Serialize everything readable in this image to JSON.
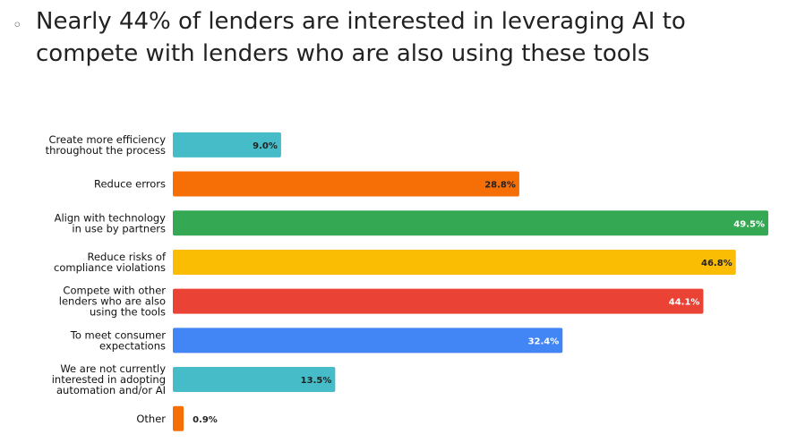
{
  "slide": {
    "bullet": "◦",
    "title": "Nearly 44% of lenders are interested in leveraging AI to compete with lenders who are also using these tools"
  },
  "chart_data": {
    "type": "bar",
    "orientation": "horizontal",
    "categories": [
      [
        "Create more efficiency",
        "throughout the process"
      ],
      [
        "Reduce errors"
      ],
      [
        "Align with technology",
        "in use by partners"
      ],
      [
        "Reduce risks of",
        "compliance violations"
      ],
      [
        "Compete with other",
        "lenders who are also",
        "using the tools"
      ],
      [
        "To meet consumer",
        "expectations"
      ],
      [
        "We are not currently",
        "interested in adopting",
        "automation and/or AI"
      ],
      [
        "Other"
      ]
    ],
    "values": [
      9.0,
      28.8,
      49.5,
      46.8,
      44.1,
      32.4,
      13.5,
      0.9
    ],
    "value_labels": [
      "9.0%",
      "28.8%",
      "49.5%",
      "46.8%",
      "44.1%",
      "32.4%",
      "13.5%",
      "0.9%"
    ],
    "colors": [
      "#45bcc7",
      "#f56e06",
      "#34a853",
      "#fbbc04",
      "#ea4335",
      "#4285f4",
      "#45bcc7",
      "#f56e06"
    ],
    "label_colors": [
      "#222222",
      "#222222",
      "#ffffff",
      "#222222",
      "#ffffff",
      "#ffffff",
      "#222222",
      "#222222"
    ],
    "xlim": [
      0,
      49.5
    ],
    "grid": false,
    "legend": "none"
  }
}
